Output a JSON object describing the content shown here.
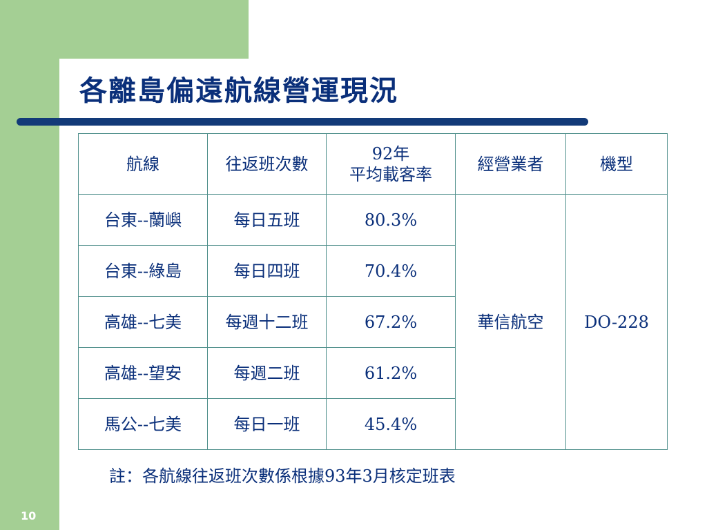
{
  "slide": {
    "title": "各離島偏遠航線營運現況",
    "page_number": "10",
    "note": "註：各航線往返班次數係根據93年3月核定班表"
  },
  "table": {
    "headers": {
      "route": "航線",
      "frequency": "往返班次數",
      "load_factor_line1": "92年",
      "load_factor_line2": "平均載客率",
      "operator": "經營業者",
      "aircraft": "機型"
    },
    "rows": [
      {
        "route": "台東--蘭嶼",
        "frequency": "每日五班",
        "load_factor": "80.3%"
      },
      {
        "route": "台東--綠島",
        "frequency": "每日四班",
        "load_factor": "70.4%"
      },
      {
        "route": "高雄--七美",
        "frequency": "每週十二班",
        "load_factor": "67.2%"
      },
      {
        "route": "高雄--望安",
        "frequency": "每週二班",
        "load_factor": "61.2%"
      },
      {
        "route": "馬公--七美",
        "frequency": "每日一班",
        "load_factor": "45.4%"
      }
    ],
    "operator": "華信航空",
    "aircraft": "DO-228"
  }
}
